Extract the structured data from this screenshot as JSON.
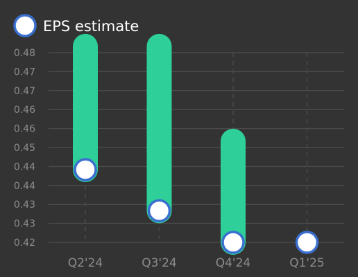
{
  "chart_data": {
    "type": "bar",
    "legend": {
      "position": "top-left",
      "label": "EPS estimate"
    },
    "categories": [
      "Q2'24",
      "Q3'24",
      "Q4'24",
      "Q1'25"
    ],
    "series": [
      {
        "name": "EPS estimate",
        "values": [
          0.443,
          0.43,
          0.42,
          0.42
        ]
      }
    ],
    "ranges": [
      {
        "high": 0.482,
        "low": 0.443
      },
      {
        "high": 0.482,
        "low": 0.43
      },
      {
        "high": 0.452,
        "low": 0.42
      },
      null
    ],
    "y_tick_labels": [
      "0.48",
      "0.47",
      "0.47",
      "0.46",
      "0.46",
      "0.45",
      "0.44",
      "0.44",
      "0.43",
      "0.43",
      "0.42"
    ],
    "y_ticks": [
      0.48,
      0.474,
      0.468,
      0.462,
      0.456,
      0.45,
      0.444,
      0.438,
      0.432,
      0.426,
      0.42
    ],
    "ylim": [
      0.418,
      0.481
    ],
    "grid": true,
    "colors": {
      "background": "#333333",
      "range_bar": "#2ecf98",
      "marker_fill": "#ffffff",
      "marker_stroke": "#3a6fd0",
      "grid": "#4a4a4a",
      "tick_text": "#8c8c8c",
      "legend_text": "#ffffff"
    }
  }
}
